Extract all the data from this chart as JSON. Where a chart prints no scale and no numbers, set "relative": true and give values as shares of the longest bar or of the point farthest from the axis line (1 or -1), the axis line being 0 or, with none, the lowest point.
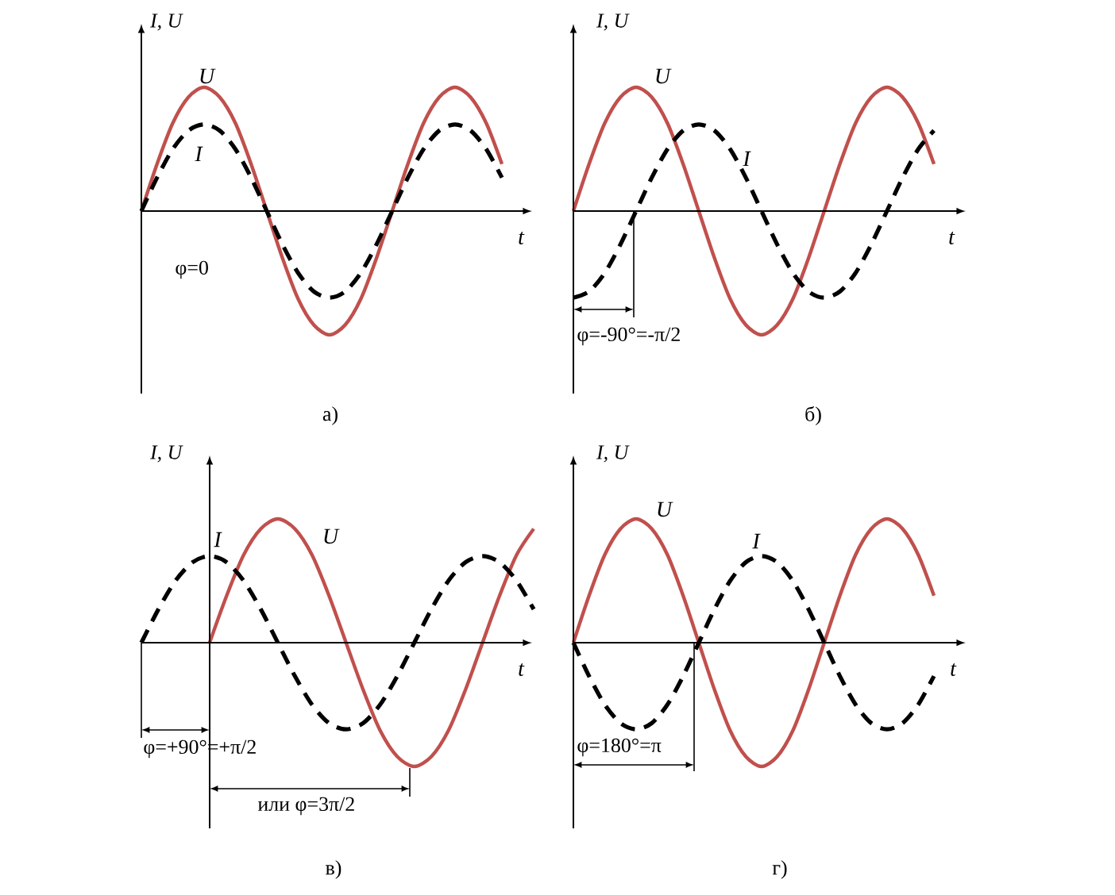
{
  "chart_data": [
    {
      "type": "line",
      "relative": true,
      "title": "а)",
      "xlabel": "t",
      "ylabel": "I, U",
      "legend": false,
      "marker": "none",
      "categories": [
        null,
        null,
        null,
        null,
        null,
        null,
        null,
        null,
        null,
        null,
        null,
        null,
        null,
        null,
        null,
        null,
        null,
        null,
        null,
        null,
        null,
        null,
        null,
        null
      ],
      "series": [
        {
          "name": "U",
          "color": "#c0504d",
          "line_style": "solid",
          "values": [
            0,
            0.38,
            0.71,
            0.92,
            1,
            0.92,
            0.71,
            0.38,
            0,
            -0.38,
            -0.71,
            -0.92,
            -1,
            -0.92,
            -0.71,
            -0.38,
            0,
            0.38,
            0.71,
            0.92,
            1,
            0.92,
            0.71,
            0.38
          ]
        },
        {
          "name": "I",
          "color": "#000000",
          "line_style": "dashed",
          "values": [
            0,
            0.27,
            0.5,
            0.65,
            0.7,
            0.65,
            0.5,
            0.27,
            0,
            -0.27,
            -0.5,
            -0.65,
            -0.7,
            -0.65,
            -0.5,
            -0.27,
            0,
            0.27,
            0.5,
            0.65,
            0.7,
            0.65,
            0.5,
            0.27
          ]
        }
      ],
      "annotations": [
        "φ=0"
      ]
    },
    {
      "type": "line",
      "relative": true,
      "title": "б)",
      "xlabel": "t",
      "ylabel": "I, U",
      "legend": false,
      "marker": "none",
      "categories": [
        null,
        null,
        null,
        null,
        null,
        null,
        null,
        null,
        null,
        null,
        null,
        null,
        null,
        null,
        null,
        null,
        null,
        null,
        null,
        null,
        null,
        null,
        null,
        null
      ],
      "series": [
        {
          "name": "U",
          "color": "#c0504d",
          "line_style": "solid",
          "values": [
            0,
            0.38,
            0.71,
            0.92,
            1,
            0.92,
            0.71,
            0.38,
            0,
            -0.38,
            -0.71,
            -0.92,
            -1,
            -0.92,
            -0.71,
            -0.38,
            0,
            0.38,
            0.71,
            0.92,
            1,
            0.92,
            0.71,
            0.38
          ]
        },
        {
          "name": "I",
          "color": "#000000",
          "line_style": "dashed",
          "values": [
            -0.7,
            -0.65,
            -0.5,
            -0.27,
            0,
            0.27,
            0.5,
            0.65,
            0.7,
            0.65,
            0.5,
            0.27,
            0,
            -0.27,
            -0.5,
            -0.65,
            -0.7,
            -0.65,
            -0.5,
            -0.27,
            0,
            0.27,
            0.5,
            0.65
          ]
        }
      ],
      "annotations": [
        "φ=-90°=-π/2"
      ]
    },
    {
      "type": "line",
      "relative": true,
      "title": "в)",
      "xlabel": "t",
      "ylabel": "I, U",
      "legend": false,
      "marker": "none",
      "categories": [
        null,
        null,
        null,
        null,
        null,
        null,
        null,
        null,
        null,
        null,
        null,
        null,
        null,
        null,
        null,
        null,
        null,
        null,
        null,
        null,
        null,
        null,
        null,
        null
      ],
      "series": [
        {
          "name": "U",
          "color": "#c0504d",
          "line_style": "solid",
          "values": [
            null,
            null,
            null,
            null,
            0,
            0.38,
            0.71,
            0.92,
            1,
            0.92,
            0.71,
            0.38,
            0,
            -0.38,
            -0.71,
            -0.92,
            -1,
            -0.92,
            -0.71,
            -0.38,
            0,
            0.38,
            0.71,
            0.92
          ]
        },
        {
          "name": "I",
          "color": "#000000",
          "line_style": "dashed",
          "values": [
            0,
            0.27,
            0.5,
            0.65,
            0.7,
            0.65,
            0.5,
            0.27,
            0,
            -0.27,
            -0.5,
            -0.65,
            -0.7,
            -0.65,
            -0.5,
            -0.27,
            0,
            0.27,
            0.5,
            0.65,
            0.7,
            0.65,
            0.5,
            0.27
          ]
        }
      ],
      "annotations": [
        "φ=+90°=+π/2",
        "или φ=3π/2"
      ]
    },
    {
      "type": "line",
      "relative": true,
      "title": "г)",
      "xlabel": "t",
      "ylabel": "I, U",
      "legend": false,
      "marker": "none",
      "categories": [
        null,
        null,
        null,
        null,
        null,
        null,
        null,
        null,
        null,
        null,
        null,
        null,
        null,
        null,
        null,
        null,
        null,
        null,
        null,
        null,
        null,
        null,
        null,
        null
      ],
      "series": [
        {
          "name": "U",
          "color": "#c0504d",
          "line_style": "solid",
          "values": [
            0,
            0.38,
            0.71,
            0.92,
            1,
            0.92,
            0.71,
            0.38,
            0,
            -0.38,
            -0.71,
            -0.92,
            -1,
            -0.92,
            -0.71,
            -0.38,
            0,
            0.38,
            0.71,
            0.92,
            1,
            0.92,
            0.71,
            0.38
          ]
        },
        {
          "name": "I",
          "color": "#000000",
          "line_style": "dashed",
          "values": [
            0,
            -0.27,
            -0.5,
            -0.65,
            -0.7,
            -0.65,
            -0.5,
            -0.27,
            0,
            0.27,
            0.5,
            0.65,
            0.7,
            0.65,
            0.5,
            0.27,
            0,
            -0.27,
            -0.5,
            -0.65,
            -0.7,
            -0.65,
            -0.5,
            -0.27
          ]
        }
      ],
      "annotations": [
        "φ=180°=π"
      ]
    }
  ]
}
